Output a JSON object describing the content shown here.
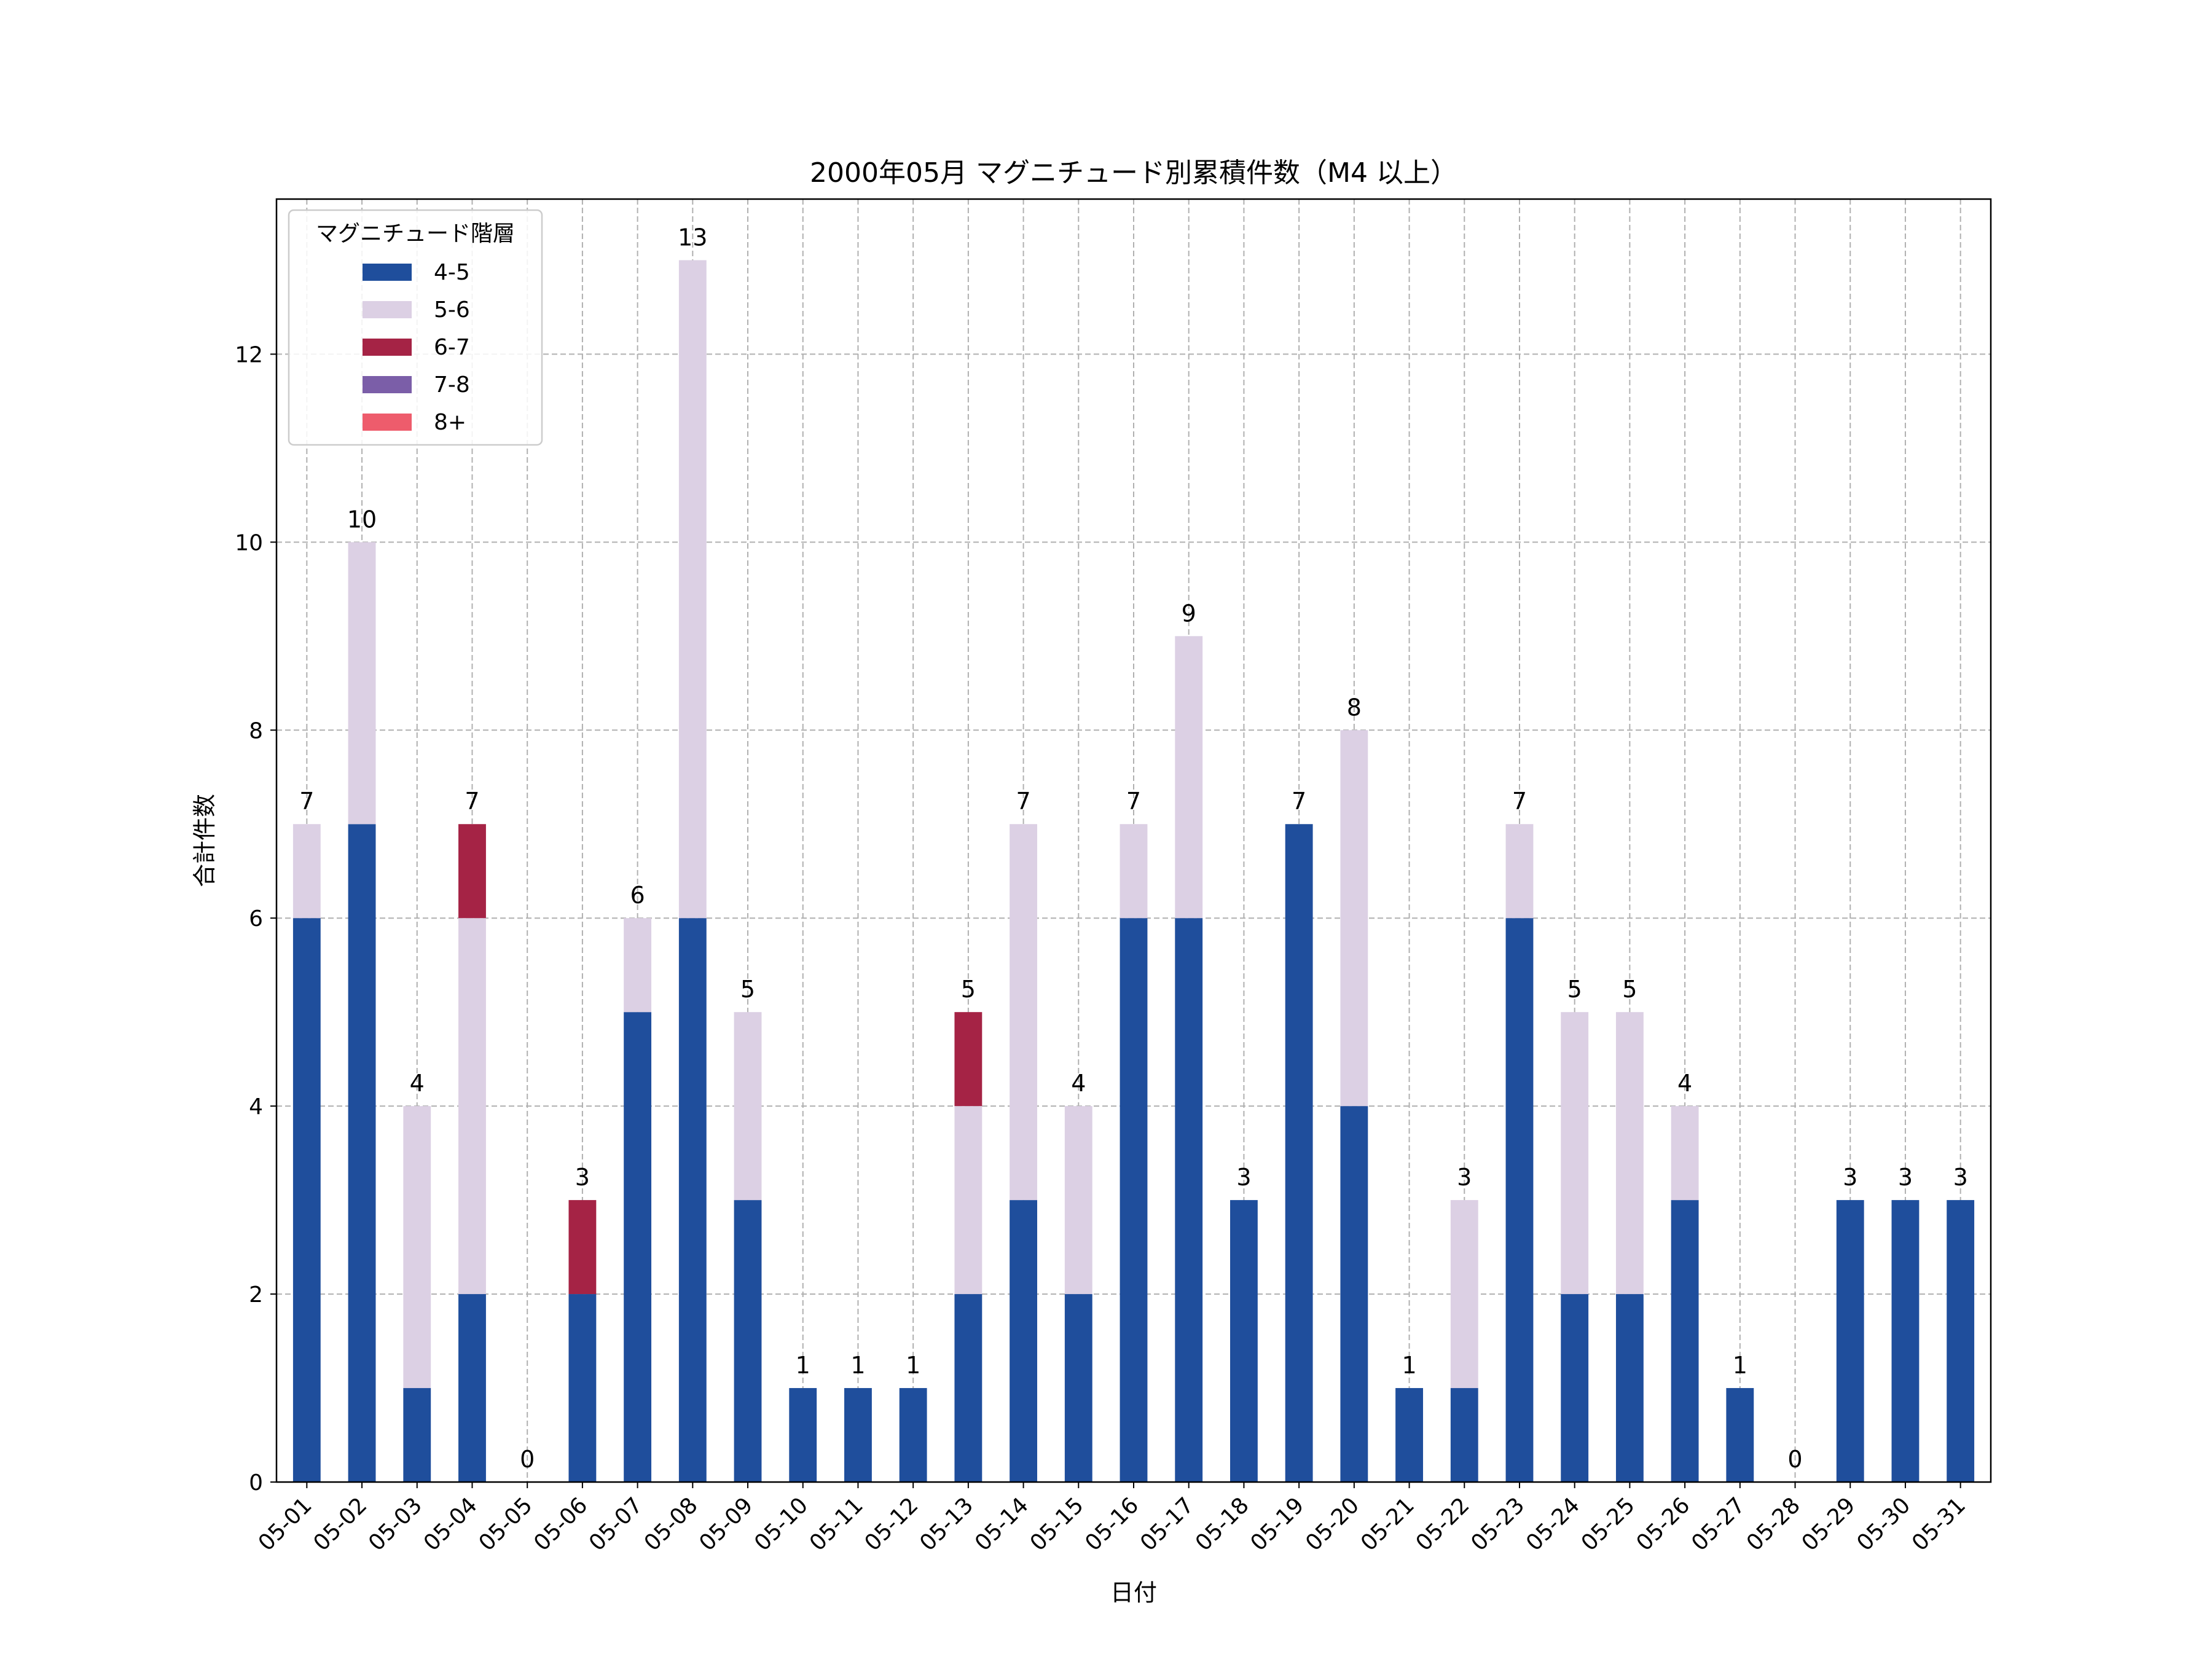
{
  "chart_data": {
    "type": "bar",
    "stacked": true,
    "title": "2000年05月 マグニチュード別累積件数（M4 以上）",
    "xlabel": "日付",
    "ylabel": "合計件数",
    "ylim": [
      0,
      13.65
    ],
    "yticks": [
      0,
      2,
      4,
      6,
      8,
      10,
      12
    ],
    "grid": true,
    "legend": {
      "title": "マグニチュード階層",
      "placement": "top-left"
    },
    "categories": [
      "05-01",
      "05-02",
      "05-03",
      "05-04",
      "05-05",
      "05-06",
      "05-07",
      "05-08",
      "05-09",
      "05-10",
      "05-11",
      "05-12",
      "05-13",
      "05-14",
      "05-15",
      "05-16",
      "05-17",
      "05-18",
      "05-19",
      "05-20",
      "05-21",
      "05-22",
      "05-23",
      "05-24",
      "05-25",
      "05-26",
      "05-27",
      "05-28",
      "05-29",
      "05-30",
      "05-31"
    ],
    "series": [
      {
        "name": "4-5",
        "color": "#1f4e9c",
        "values": [
          6,
          7,
          1,
          2,
          0,
          2,
          5,
          6,
          3,
          1,
          1,
          1,
          2,
          3,
          2,
          6,
          6,
          3,
          7,
          4,
          1,
          1,
          6,
          2,
          2,
          3,
          1,
          0,
          3,
          3,
          3
        ]
      },
      {
        "name": "5-6",
        "color": "#dcd0e4",
        "values": [
          1,
          3,
          3,
          4,
          0,
          0,
          1,
          7,
          2,
          0,
          0,
          0,
          2,
          4,
          2,
          1,
          3,
          0,
          0,
          4,
          0,
          2,
          1,
          3,
          3,
          1,
          0,
          0,
          0,
          0,
          0
        ]
      },
      {
        "name": "6-7",
        "color": "#a52345",
        "values": [
          0,
          0,
          0,
          1,
          0,
          1,
          0,
          0,
          0,
          0,
          0,
          0,
          1,
          0,
          0,
          0,
          0,
          0,
          0,
          0,
          0,
          0,
          0,
          0,
          0,
          0,
          0,
          0,
          0,
          0,
          0
        ]
      },
      {
        "name": "7-8",
        "color": "#7b5ea8",
        "values": [
          0,
          0,
          0,
          0,
          0,
          0,
          0,
          0,
          0,
          0,
          0,
          0,
          0,
          0,
          0,
          0,
          0,
          0,
          0,
          0,
          0,
          0,
          0,
          0,
          0,
          0,
          0,
          0,
          0,
          0,
          0
        ]
      },
      {
        "name": "8+",
        "color": "#ee5c6c",
        "values": [
          0,
          0,
          0,
          0,
          0,
          0,
          0,
          0,
          0,
          0,
          0,
          0,
          0,
          0,
          0,
          0,
          0,
          0,
          0,
          0,
          0,
          0,
          0,
          0,
          0,
          0,
          0,
          0,
          0,
          0,
          0
        ]
      }
    ],
    "totals": [
      7,
      10,
      4,
      7,
      0,
      3,
      6,
      13,
      5,
      1,
      1,
      1,
      5,
      7,
      4,
      7,
      9,
      3,
      7,
      8,
      1,
      3,
      7,
      5,
      5,
      4,
      1,
      0,
      3,
      3,
      3
    ]
  }
}
